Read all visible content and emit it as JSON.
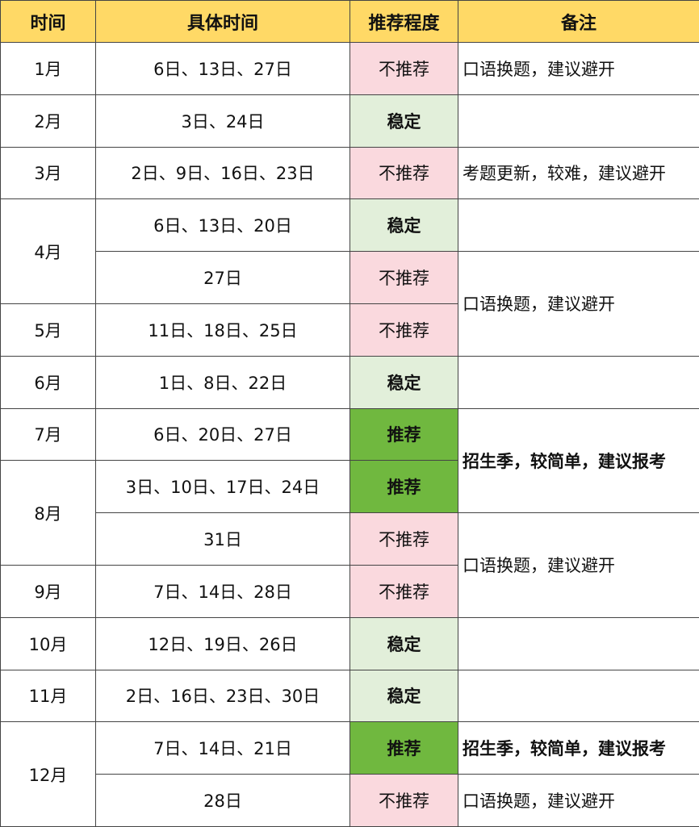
{
  "headers": [
    "时间",
    "具体时间",
    "推荐程度",
    "备注"
  ],
  "colors": {
    "header": "#FFD966",
    "not_recommended": "#FAD9DE",
    "stable": "#E2EFDA",
    "recommended": "#70B83F"
  },
  "rows": [
    {
      "month": "1月",
      "dates": "6日、13日、27日",
      "level": "不推荐",
      "level_type": "no",
      "note": "口语换题，建议避开"
    },
    {
      "month": "2月",
      "dates": "3日、24日",
      "level": "稳定",
      "level_type": "stable",
      "note": ""
    },
    {
      "month": "3月",
      "dates": "2日、9日、16日、23日",
      "level": "不推荐",
      "level_type": "no",
      "note": "考题更新，较难，建议避开"
    },
    {
      "month": "4月",
      "month_rowspan": 2,
      "dates": "6日、13日、20日",
      "level": "稳定",
      "level_type": "stable",
      "note": ""
    },
    {
      "dates": "27日",
      "level": "不推荐",
      "level_type": "no",
      "note": "口语换题，建议避开",
      "note_rowspan": 2
    },
    {
      "month": "5月",
      "dates": "11日、18日、25日",
      "level": "不推荐",
      "level_type": "no"
    },
    {
      "month": "6月",
      "dates": "1日、8日、22日",
      "level": "稳定",
      "level_type": "stable",
      "note": ""
    },
    {
      "month": "7月",
      "dates": "6日、20日、27日",
      "level": "推荐",
      "level_type": "rec",
      "note": "招生季，较简单，建议报考",
      "note_bold": true,
      "note_rowspan": 2
    },
    {
      "month": "8月",
      "month_rowspan": 2,
      "dates": "3日、10日、17日、24日",
      "level": "推荐",
      "level_type": "rec"
    },
    {
      "dates": "31日",
      "level": "不推荐",
      "level_type": "no",
      "note": "口语换题，建议避开",
      "note_rowspan": 2
    },
    {
      "month": "9月",
      "dates": "7日、14日、28日",
      "level": "不推荐",
      "level_type": "no"
    },
    {
      "month": "10月",
      "dates": "12日、19日、26日",
      "level": "稳定",
      "level_type": "stable",
      "note": ""
    },
    {
      "month": "11月",
      "dates": "2日、16日、23日、30日",
      "level": "稳定",
      "level_type": "stable",
      "note": ""
    },
    {
      "month": "12月",
      "month_rowspan": 2,
      "dates": "7日、14日、21日",
      "level": "推荐",
      "level_type": "rec",
      "note": "招生季，较简单，建议报考",
      "note_bold": true
    },
    {
      "dates": "28日",
      "level": "不推荐",
      "level_type": "no",
      "note": "口语换题，建议避开"
    }
  ]
}
